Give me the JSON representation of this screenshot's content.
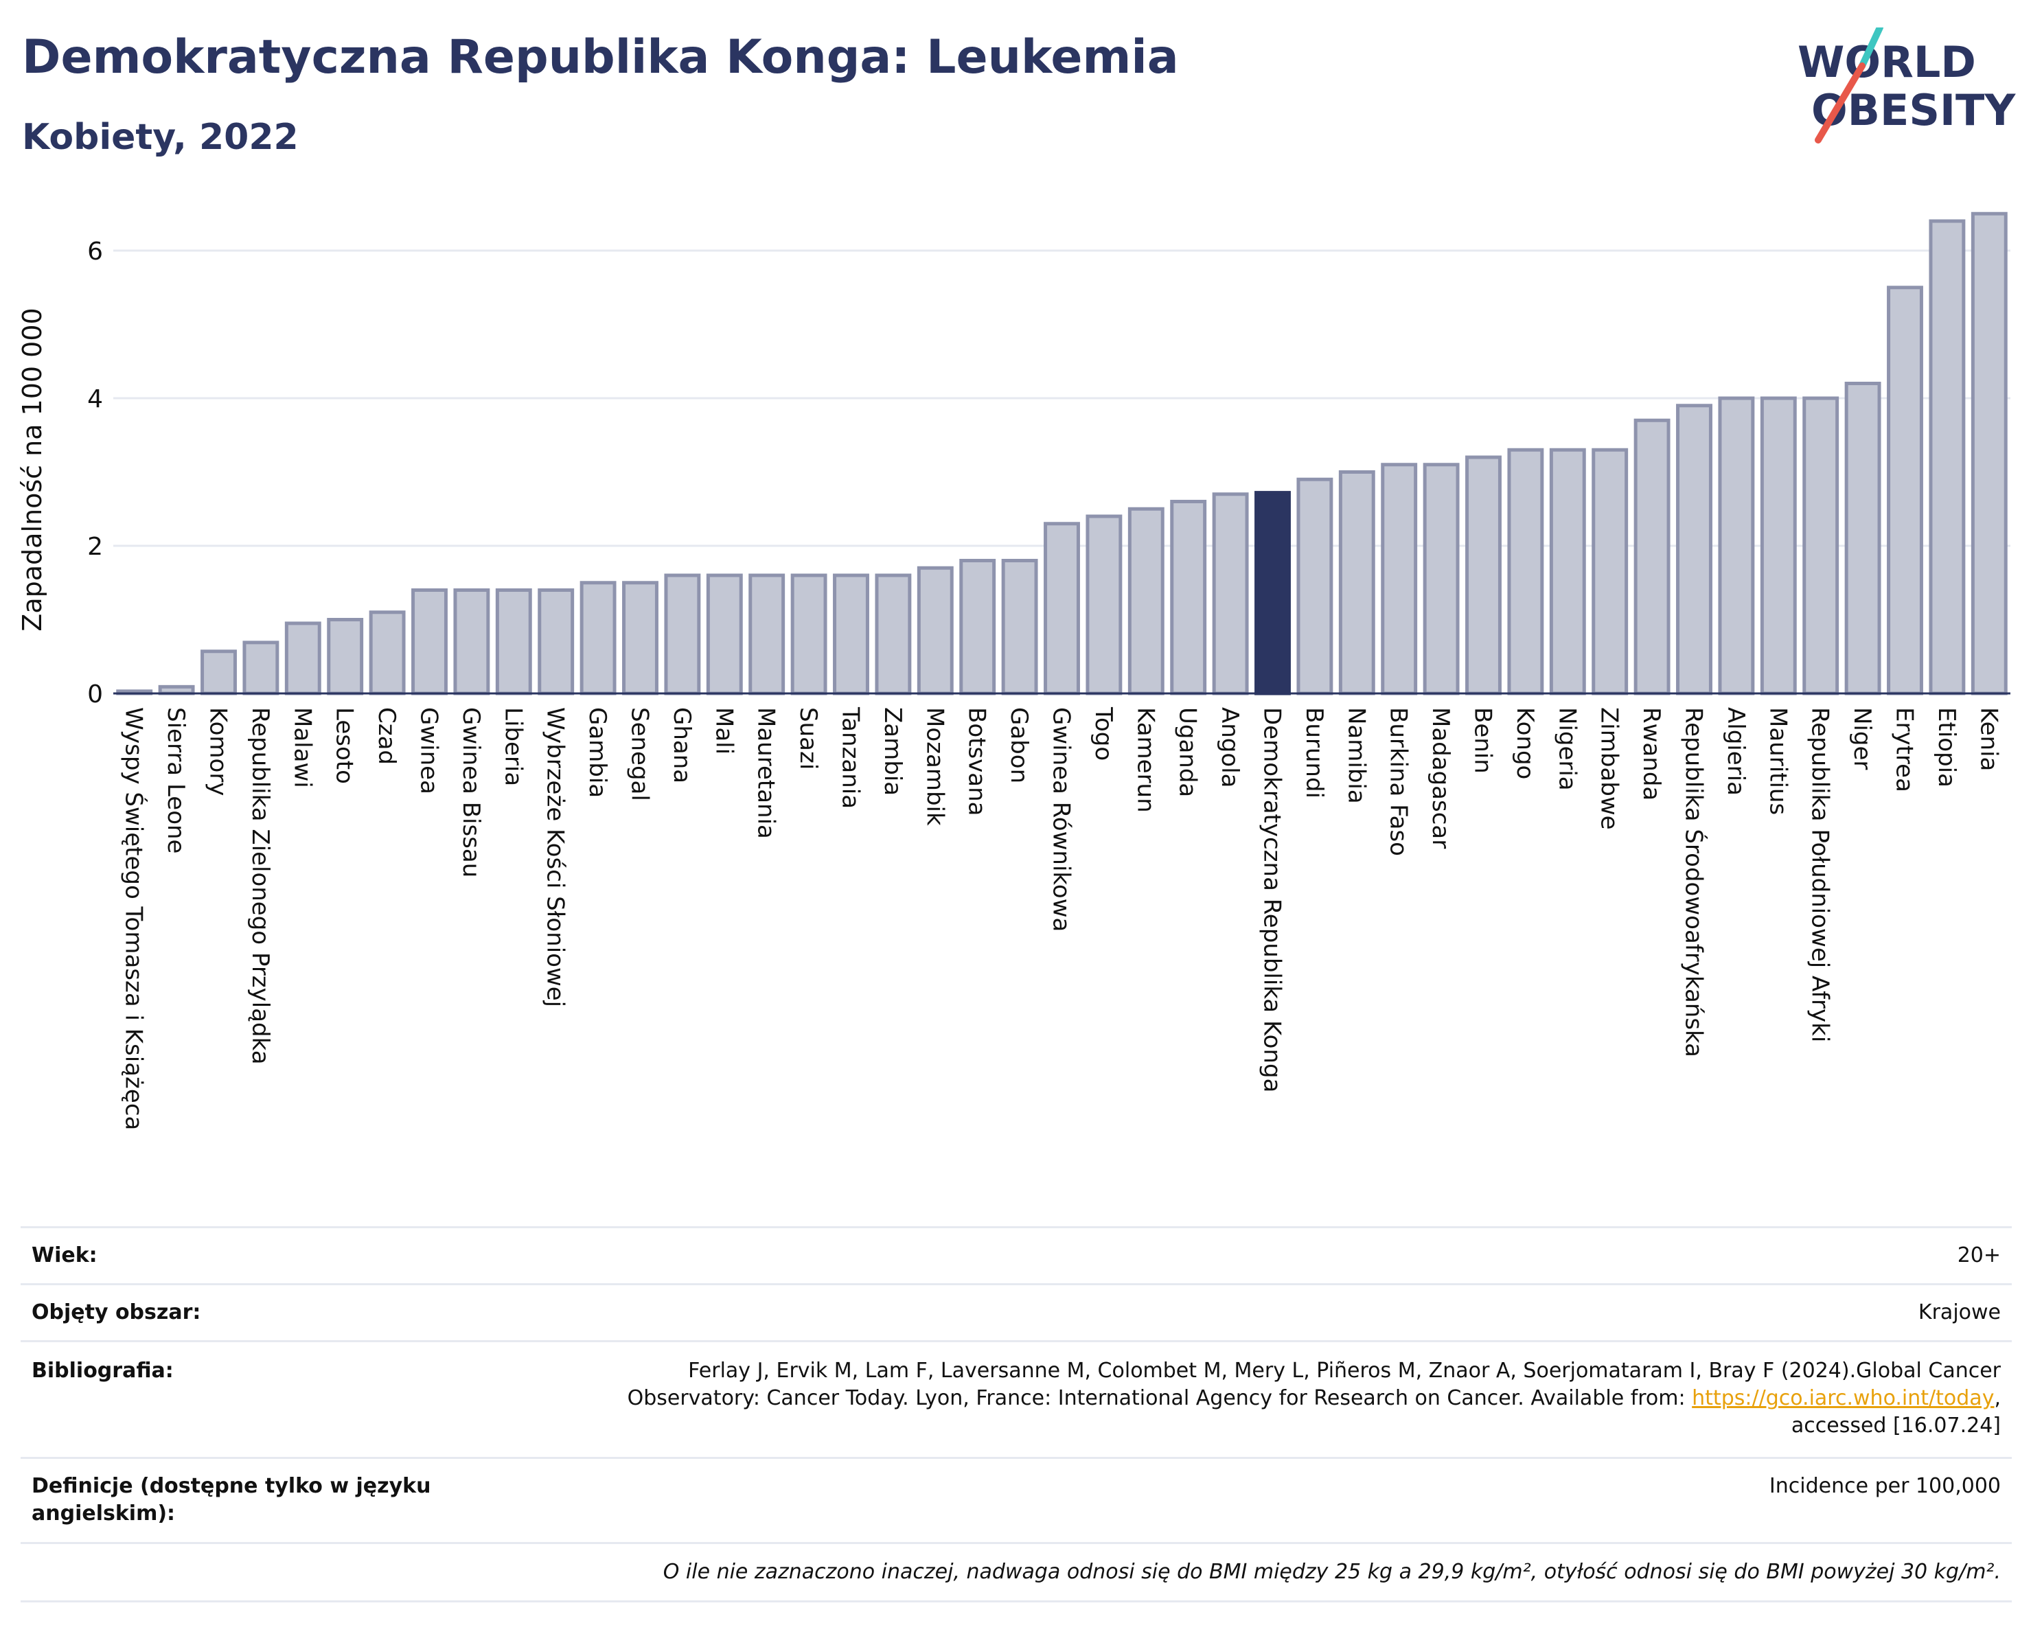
{
  "header": {
    "title": "Demokratyczna Republika Konga: Leukemia",
    "subtitle": "Kobiety, 2022"
  },
  "logo": {
    "line1": "WORLD",
    "line2": "OBESITY"
  },
  "colors": {
    "bar": "#c3c7d4",
    "bar_stroke": "#8e93ad",
    "highlight": "#2b3561",
    "title": "#2b3561",
    "accent_red": "#e8584a",
    "accent_teal": "#3ec6c1",
    "link": "#e8a10c"
  },
  "chart_data": {
    "type": "bar",
    "ylabel": "Zapadalność na 100 000",
    "ylim": [
      0,
      6.7
    ],
    "yticks": [
      0,
      2,
      4,
      6
    ],
    "grid": true,
    "highlight": "Demokratyczna Republika Konga",
    "categories": [
      "Wyspy Świętego Tomasza i Książęca",
      "Sierra Leone",
      "Komory",
      "Republika Zielonego Przylądka",
      "Malawi",
      "Lesoto",
      "Czad",
      "Gwinea",
      "Gwinea Bissau",
      "Liberia",
      "Wybrzeże Kości Słoniowej",
      "Gambia",
      "Senegal",
      "Ghana",
      "Mali",
      "Mauretania",
      "Suazi",
      "Tanzania",
      "Zambia",
      "Mozambik",
      "Botsvana",
      "Gabon",
      "Gwinea Równikowa",
      "Togo",
      "Kamerun",
      "Uganda",
      "Angola",
      "Demokratyczna Republika Konga",
      "Burundi",
      "Namibia",
      "Burkina Faso",
      "Madagascar",
      "Benin",
      "Kongo",
      "Nigeria",
      "Zimbabwe",
      "Rwanda",
      "Republika Środowoafrykańska",
      "Algieria",
      "Mauritius",
      "Republika Południowej Afryki",
      "Niger",
      "Erytrea",
      "Etiopia",
      "Kenia"
    ],
    "values": [
      0.03,
      0.09,
      0.57,
      0.69,
      0.95,
      1.0,
      1.1,
      1.4,
      1.4,
      1.4,
      1.4,
      1.5,
      1.5,
      1.6,
      1.6,
      1.6,
      1.6,
      1.6,
      1.6,
      1.7,
      1.8,
      1.8,
      2.3,
      2.4,
      2.5,
      2.6,
      2.7,
      2.72,
      2.9,
      3.0,
      3.1,
      3.1,
      3.2,
      3.3,
      3.3,
      3.3,
      3.7,
      3.9,
      4.0,
      4.0,
      4.0,
      4.2,
      5.5,
      6.4,
      6.5
    ]
  },
  "meta": {
    "age": {
      "label": "Wiek:",
      "value": "20+"
    },
    "area": {
      "label": "Objęty obszar:",
      "value": "Krajowe"
    },
    "bibliography": {
      "label": "Bibliografia:",
      "line1": "Ferlay J, Ervik M, Lam F, Laversanne M, Colombet M, Mery L, Piñeros M, Znaor A, Soerjomataram I, Bray F (2024).Global Cancer",
      "line2": "Observatory: Cancer Today. Lyon, France: International Agency for Research on Cancer. Available from: ",
      "link": "https://gco.iarc.who.int/today",
      "line2_end": ",",
      "line3": "accessed [16.07.24]"
    },
    "definitions": {
      "label": "Definicje (dostępne tylko w języku angielskim):",
      "value": "Incidence per 100,000"
    },
    "note": "O ile nie zaznaczono inaczej, nadwaga odnosi się do BMI między 25 kg a 29,9 kg/m², otyłość odnosi się do BMI powyżej 30 kg/m²."
  }
}
